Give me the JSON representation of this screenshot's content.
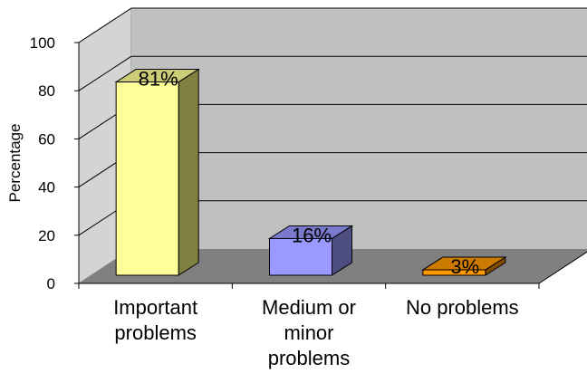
{
  "chart_data": {
    "type": "bar",
    "title": "",
    "xlabel": "",
    "ylabel": "Percentage",
    "ylim": [
      0,
      100
    ],
    "yticks": [
      0,
      20,
      40,
      60,
      80,
      100
    ],
    "grid": true,
    "legend": "none",
    "categories": [
      [
        "Important",
        "problems"
      ],
      [
        "Medium or",
        "minor",
        "problems"
      ],
      [
        "No problems"
      ]
    ],
    "values": [
      81,
      16,
      3
    ],
    "data_labels": [
      "81%",
      "16%",
      "3%"
    ],
    "colors": {
      "bars": [
        {
          "front": "#ffff99",
          "side": "#808040",
          "top": "#cccc77"
        },
        {
          "front": "#9999ff",
          "side": "#4d4d80",
          "top": "#7a7acc"
        },
        {
          "front": "#ff9900",
          "side": "#804d00",
          "top": "#cc7a00"
        }
      ],
      "back_wall": "#c0c0c0",
      "side_wall": "#d4d4d4",
      "floor": "#808080"
    }
  }
}
